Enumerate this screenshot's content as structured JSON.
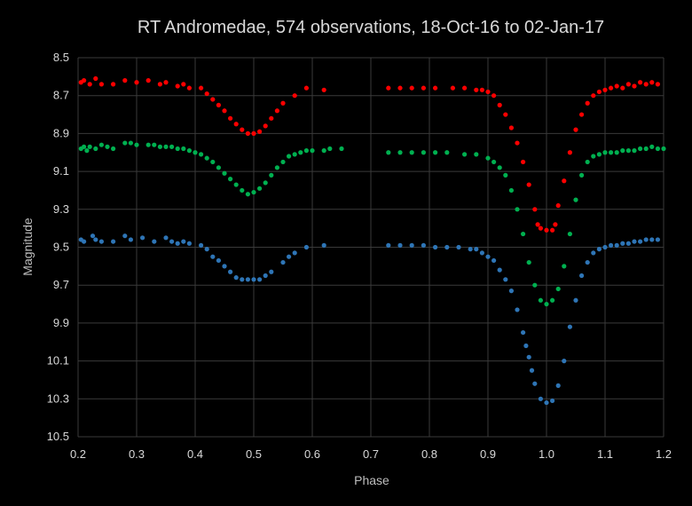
{
  "chart_data": {
    "type": "scatter",
    "title": "RT Andromedae, 574 observations, 18-Oct-16 to 02-Jan-17",
    "xlabel": "Phase",
    "ylabel": "Magnitude",
    "xlim": [
      0.2,
      1.2
    ],
    "ylim": [
      8.5,
      10.5
    ],
    "y_reversed": true,
    "x_ticks": [
      "0.2",
      "0.3",
      "0.4",
      "0.5",
      "0.6",
      "0.7",
      "0.8",
      "0.9",
      "1.0",
      "1.1",
      "1.2"
    ],
    "y_ticks": [
      "8.5",
      "8.7",
      "8.9",
      "9.1",
      "9.3",
      "9.5",
      "9.7",
      "9.9",
      "10.1",
      "10.3",
      "10.5"
    ],
    "grid": true,
    "legend": "none",
    "colors": {
      "background": "#000000",
      "grid": "#3a3a3a",
      "text": "#d9d9d9"
    },
    "series": [
      {
        "color": "#ff0000",
        "points": [
          [
            0.205,
            8.63
          ],
          [
            0.21,
            8.62
          ],
          [
            0.22,
            8.64
          ],
          [
            0.23,
            8.61
          ],
          [
            0.24,
            8.64
          ],
          [
            0.26,
            8.64
          ],
          [
            0.28,
            8.62
          ],
          [
            0.3,
            8.63
          ],
          [
            0.32,
            8.62
          ],
          [
            0.34,
            8.64
          ],
          [
            0.35,
            8.63
          ],
          [
            0.37,
            8.65
          ],
          [
            0.38,
            8.64
          ],
          [
            0.39,
            8.66
          ],
          [
            0.41,
            8.66
          ],
          [
            0.42,
            8.69
          ],
          [
            0.43,
            8.72
          ],
          [
            0.44,
            8.75
          ],
          [
            0.45,
            8.78
          ],
          [
            0.46,
            8.82
          ],
          [
            0.47,
            8.85
          ],
          [
            0.48,
            8.88
          ],
          [
            0.49,
            8.9
          ],
          [
            0.5,
            8.9
          ],
          [
            0.51,
            8.89
          ],
          [
            0.52,
            8.86
          ],
          [
            0.53,
            8.82
          ],
          [
            0.54,
            8.78
          ],
          [
            0.55,
            8.74
          ],
          [
            0.57,
            8.7
          ],
          [
            0.59,
            8.66
          ],
          [
            0.62,
            8.67
          ],
          [
            0.73,
            8.66
          ],
          [
            0.75,
            8.66
          ],
          [
            0.77,
            8.66
          ],
          [
            0.79,
            8.66
          ],
          [
            0.81,
            8.66
          ],
          [
            0.84,
            8.66
          ],
          [
            0.86,
            8.66
          ],
          [
            0.88,
            8.67
          ],
          [
            0.89,
            8.67
          ],
          [
            0.9,
            8.68
          ],
          [
            0.91,
            8.7
          ],
          [
            0.92,
            8.75
          ],
          [
            0.93,
            8.8
          ],
          [
            0.94,
            8.87
          ],
          [
            0.95,
            8.95
          ],
          [
            0.96,
            9.05
          ],
          [
            0.97,
            9.17
          ],
          [
            0.98,
            9.3
          ],
          [
            0.985,
            9.38
          ],
          [
            0.99,
            9.4
          ],
          [
            1.0,
            9.41
          ],
          [
            1.01,
            9.41
          ],
          [
            1.015,
            9.38
          ],
          [
            1.02,
            9.28
          ],
          [
            1.03,
            9.15
          ],
          [
            1.04,
            9.0
          ],
          [
            1.05,
            8.88
          ],
          [
            1.06,
            8.8
          ],
          [
            1.07,
            8.74
          ],
          [
            1.08,
            8.7
          ],
          [
            1.09,
            8.68
          ],
          [
            1.1,
            8.67
          ],
          [
            1.11,
            8.66
          ],
          [
            1.12,
            8.65
          ],
          [
            1.13,
            8.66
          ],
          [
            1.14,
            8.64
          ],
          [
            1.15,
            8.65
          ],
          [
            1.16,
            8.63
          ],
          [
            1.17,
            8.64
          ],
          [
            1.18,
            8.63
          ],
          [
            1.19,
            8.64
          ]
        ]
      },
      {
        "color": "#00b050",
        "points": [
          [
            0.205,
            8.98
          ],
          [
            0.21,
            8.97
          ],
          [
            0.215,
            8.99
          ],
          [
            0.22,
            8.97
          ],
          [
            0.23,
            8.98
          ],
          [
            0.24,
            8.96
          ],
          [
            0.25,
            8.97
          ],
          [
            0.26,
            8.98
          ],
          [
            0.28,
            8.95
          ],
          [
            0.29,
            8.95
          ],
          [
            0.3,
            8.96
          ],
          [
            0.32,
            8.96
          ],
          [
            0.33,
            8.96
          ],
          [
            0.34,
            8.97
          ],
          [
            0.35,
            8.97
          ],
          [
            0.36,
            8.97
          ],
          [
            0.37,
            8.98
          ],
          [
            0.38,
            8.98
          ],
          [
            0.39,
            8.99
          ],
          [
            0.4,
            9.0
          ],
          [
            0.41,
            9.01
          ],
          [
            0.42,
            9.03
          ],
          [
            0.43,
            9.05
          ],
          [
            0.44,
            9.08
          ],
          [
            0.45,
            9.11
          ],
          [
            0.46,
            9.14
          ],
          [
            0.47,
            9.17
          ],
          [
            0.48,
            9.2
          ],
          [
            0.49,
            9.22
          ],
          [
            0.5,
            9.21
          ],
          [
            0.51,
            9.19
          ],
          [
            0.52,
            9.16
          ],
          [
            0.53,
            9.12
          ],
          [
            0.54,
            9.08
          ],
          [
            0.55,
            9.05
          ],
          [
            0.56,
            9.02
          ],
          [
            0.57,
            9.01
          ],
          [
            0.58,
            9.0
          ],
          [
            0.59,
            8.99
          ],
          [
            0.6,
            8.99
          ],
          [
            0.62,
            8.99
          ],
          [
            0.63,
            8.98
          ],
          [
            0.65,
            8.98
          ],
          [
            0.73,
            9.0
          ],
          [
            0.75,
            9.0
          ],
          [
            0.77,
            9.0
          ],
          [
            0.79,
            9.0
          ],
          [
            0.81,
            9.0
          ],
          [
            0.83,
            9.0
          ],
          [
            0.86,
            9.01
          ],
          [
            0.88,
            9.01
          ],
          [
            0.9,
            9.03
          ],
          [
            0.91,
            9.05
          ],
          [
            0.92,
            9.08
          ],
          [
            0.93,
            9.12
          ],
          [
            0.94,
            9.2
          ],
          [
            0.95,
            9.3
          ],
          [
            0.96,
            9.43
          ],
          [
            0.97,
            9.58
          ],
          [
            0.98,
            9.7
          ],
          [
            0.99,
            9.78
          ],
          [
            1.0,
            9.8
          ],
          [
            1.01,
            9.78
          ],
          [
            1.02,
            9.72
          ],
          [
            1.03,
            9.6
          ],
          [
            1.04,
            9.43
          ],
          [
            1.05,
            9.25
          ],
          [
            1.06,
            9.12
          ],
          [
            1.07,
            9.05
          ],
          [
            1.08,
            9.02
          ],
          [
            1.09,
            9.01
          ],
          [
            1.1,
            9.0
          ],
          [
            1.11,
            9.0
          ],
          [
            1.12,
            9.0
          ],
          [
            1.13,
            8.99
          ],
          [
            1.14,
            8.99
          ],
          [
            1.15,
            8.99
          ],
          [
            1.16,
            8.98
          ],
          [
            1.17,
            8.98
          ],
          [
            1.18,
            8.97
          ],
          [
            1.19,
            8.98
          ],
          [
            1.2,
            8.98
          ]
        ]
      },
      {
        "color": "#2e75b6",
        "points": [
          [
            0.205,
            9.46
          ],
          [
            0.21,
            9.47
          ],
          [
            0.225,
            9.44
          ],
          [
            0.23,
            9.46
          ],
          [
            0.24,
            9.47
          ],
          [
            0.26,
            9.47
          ],
          [
            0.28,
            9.44
          ],
          [
            0.29,
            9.46
          ],
          [
            0.31,
            9.45
          ],
          [
            0.33,
            9.47
          ],
          [
            0.35,
            9.45
          ],
          [
            0.36,
            9.47
          ],
          [
            0.37,
            9.48
          ],
          [
            0.38,
            9.47
          ],
          [
            0.39,
            9.48
          ],
          [
            0.41,
            9.49
          ],
          [
            0.42,
            9.51
          ],
          [
            0.43,
            9.55
          ],
          [
            0.44,
            9.57
          ],
          [
            0.45,
            9.6
          ],
          [
            0.46,
            9.63
          ],
          [
            0.47,
            9.66
          ],
          [
            0.48,
            9.67
          ],
          [
            0.49,
            9.67
          ],
          [
            0.5,
            9.67
          ],
          [
            0.51,
            9.67
          ],
          [
            0.52,
            9.65
          ],
          [
            0.53,
            9.63
          ],
          [
            0.55,
            9.58
          ],
          [
            0.56,
            9.55
          ],
          [
            0.57,
            9.53
          ],
          [
            0.59,
            9.5
          ],
          [
            0.62,
            9.49
          ],
          [
            0.73,
            9.49
          ],
          [
            0.75,
            9.49
          ],
          [
            0.77,
            9.49
          ],
          [
            0.79,
            9.49
          ],
          [
            0.81,
            9.5
          ],
          [
            0.83,
            9.5
          ],
          [
            0.85,
            9.5
          ],
          [
            0.87,
            9.51
          ],
          [
            0.88,
            9.51
          ],
          [
            0.89,
            9.53
          ],
          [
            0.9,
            9.55
          ],
          [
            0.91,
            9.57
          ],
          [
            0.92,
            9.62
          ],
          [
            0.93,
            9.67
          ],
          [
            0.94,
            9.73
          ],
          [
            0.95,
            9.83
          ],
          [
            0.96,
            9.95
          ],
          [
            0.965,
            10.02
          ],
          [
            0.97,
            10.08
          ],
          [
            0.975,
            10.15
          ],
          [
            0.98,
            10.22
          ],
          [
            0.99,
            10.3
          ],
          [
            1.0,
            10.32
          ],
          [
            1.01,
            10.31
          ],
          [
            1.02,
            10.23
          ],
          [
            1.03,
            10.1
          ],
          [
            1.04,
            9.92
          ],
          [
            1.05,
            9.78
          ],
          [
            1.06,
            9.65
          ],
          [
            1.07,
            9.58
          ],
          [
            1.08,
            9.53
          ],
          [
            1.09,
            9.51
          ],
          [
            1.1,
            9.5
          ],
          [
            1.11,
            9.49
          ],
          [
            1.12,
            9.49
          ],
          [
            1.13,
            9.48
          ],
          [
            1.14,
            9.48
          ],
          [
            1.15,
            9.47
          ],
          [
            1.16,
            9.47
          ],
          [
            1.17,
            9.46
          ],
          [
            1.18,
            9.46
          ],
          [
            1.19,
            9.46
          ]
        ]
      }
    ]
  }
}
